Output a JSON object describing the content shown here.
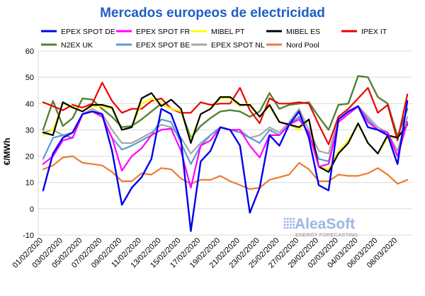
{
  "colors": {
    "title": "#1f5fc4",
    "grid": "#d9d9d9",
    "brand": "#1f5fc4",
    "brand_sub": "#7f7f7f"
  },
  "brand": {
    "logo_icon": "dotted-square-logo-icon",
    "name": "AleaSoft",
    "tagline": "ENERGY FORECASTING"
  },
  "chart_data": {
    "type": "line",
    "title": "Mercados europeos de electricidad",
    "ylabel": "€/MWh",
    "xlabel": "",
    "ylim": [
      -10,
      60
    ],
    "yticks": [
      -10,
      0,
      10,
      20,
      30,
      40,
      50,
      60
    ],
    "grid": true,
    "legend_position": "top",
    "x": [
      "01/02/2020",
      "02/02/2020",
      "03/02/2020",
      "04/02/2020",
      "05/02/2020",
      "06/02/2020",
      "07/02/2020",
      "08/02/2020",
      "09/02/2020",
      "10/02/2020",
      "11/02/2020",
      "12/02/2020",
      "13/02/2020",
      "14/02/2020",
      "15/02/2020",
      "16/02/2020",
      "17/02/2020",
      "18/02/2020",
      "19/02/2020",
      "20/02/2020",
      "21/02/2020",
      "22/02/2020",
      "23/02/2020",
      "24/02/2020",
      "25/02/2020",
      "26/02/2020",
      "27/02/2020",
      "28/02/2020",
      "29/02/2020",
      "01/03/2020",
      "02/03/2020",
      "03/03/2020",
      "04/03/2020",
      "05/03/2020",
      "06/03/2020",
      "07/03/2020",
      "08/03/2020",
      "09/03/2020"
    ],
    "x_tick_labels": [
      "01/02/2020",
      "03/02/2020",
      "05/02/2020",
      "07/02/2020",
      "09/02/2020",
      "11/02/2020",
      "13/02/2020",
      "15/02/2020",
      "17/02/2020",
      "19/02/2020",
      "21/02/2020",
      "23/02/2020",
      "25/02/2020",
      "27/02/2020",
      "29/02/2020",
      "02/03/2020",
      "04/03/2020",
      "06/03/2020",
      "08/03/2020"
    ],
    "series": [
      {
        "name": "EPEX SPOT DE",
        "color": "#0000ee",
        "width": 2.4,
        "values": [
          7,
          21,
          27,
          29,
          36,
          37,
          36,
          22,
          1.5,
          8,
          12,
          19,
          38,
          36,
          26,
          -8.5,
          18,
          22,
          31,
          30,
          24,
          -1.5,
          8,
          28,
          24,
          32,
          37,
          27,
          9,
          7,
          34,
          37,
          39,
          31,
          30,
          28,
          17,
          41
        ]
      },
      {
        "name": "EPEX SPOT FR",
        "color": "#ff00ff",
        "width": 2.2,
        "values": [
          17,
          20,
          26,
          27,
          36,
          37,
          35,
          27,
          14.5,
          20,
          23,
          28,
          30,
          30.5,
          22,
          8,
          24,
          26,
          31,
          30,
          30,
          24,
          19.5,
          28,
          28,
          32,
          34,
          29,
          16,
          17,
          33,
          36,
          39,
          33,
          30,
          29,
          20,
          33
        ]
      },
      {
        "name": "MIBEL PT",
        "color": "#ffff00",
        "width": 2.2,
        "values": [
          28,
          30,
          40,
          39,
          37,
          39,
          39,
          38,
          30,
          31,
          40,
          42,
          40,
          38,
          37,
          26,
          36,
          38,
          42,
          42,
          39,
          40,
          35,
          39,
          33,
          32,
          30,
          34,
          16,
          15,
          22,
          26,
          32,
          25,
          21,
          27,
          27,
          32
        ]
      },
      {
        "name": "MIBEL ES",
        "color": "#000000",
        "width": 2.2,
        "values": [
          29,
          28,
          40.5,
          38.5,
          37,
          39.5,
          39.5,
          38.5,
          30,
          31,
          42,
          44,
          39,
          41.5,
          38,
          25,
          36,
          38,
          42.5,
          42.5,
          39.5,
          39.5,
          35,
          39.5,
          33,
          32,
          31,
          34,
          16,
          14,
          21,
          25,
          32.5,
          25,
          21,
          28,
          27,
          32
        ]
      },
      {
        "name": "IPEX IT",
        "color": "#ee0000",
        "width": 2.2,
        "values": [
          40.5,
          39,
          37.5,
          39.5,
          38.5,
          40,
          48,
          41,
          36.5,
          38,
          38,
          41,
          42,
          38,
          36.5,
          36.5,
          40.5,
          39.5,
          40,
          40,
          46,
          37.5,
          32.5,
          42,
          40,
          40,
          40.5,
          40,
          32,
          24.5,
          35,
          38,
          42,
          46,
          36.5,
          39.5,
          26,
          43.5
        ]
      },
      {
        "name": "N2EX UK",
        "color": "#548235",
        "width": 2.4,
        "values": [
          30,
          41,
          31.5,
          34.5,
          42,
          41.5,
          38,
          35,
          31,
          31.5,
          34,
          37,
          40,
          38,
          37,
          27,
          31.5,
          34.5,
          37,
          37.5,
          37,
          35,
          37,
          44,
          38,
          39.5,
          40,
          40.5,
          35,
          30,
          39.5,
          40,
          50.5,
          50,
          42.5,
          40,
          27.5,
          38
        ]
      },
      {
        "name": "EPEX SPOT BE",
        "color": "#5b9bd5",
        "width": 2.2,
        "values": [
          19,
          27,
          28,
          27,
          36,
          37,
          35,
          27,
          22.5,
          24,
          26,
          28,
          34,
          33,
          25,
          17,
          24,
          28,
          31,
          30,
          29,
          27,
          25,
          30,
          28,
          32,
          35,
          28,
          19,
          18,
          33,
          36,
          39,
          34,
          30,
          29,
          20,
          33
        ]
      },
      {
        "name": "EPEX SPOT NL",
        "color": "#a6a6a6",
        "width": 2.2,
        "values": [
          29,
          30,
          28,
          29,
          36,
          38,
          36,
          30,
          25,
          25,
          27,
          29,
          32,
          31,
          27,
          21,
          25,
          28,
          31,
          30,
          30,
          27,
          28,
          31,
          29,
          33,
          38,
          30,
          22,
          21,
          34,
          37,
          39,
          35,
          31,
          29,
          22,
          35
        ]
      },
      {
        "name": "Nord Pool",
        "color": "#ed7d31",
        "width": 2.2,
        "values": [
          15,
          16.5,
          19.5,
          20,
          17.5,
          17,
          16.5,
          14,
          10.5,
          10.5,
          13.5,
          13,
          15.5,
          15,
          11.5,
          9.5,
          11,
          11,
          12.5,
          10.5,
          9,
          7.5,
          8,
          11,
          12,
          13,
          17.5,
          15,
          10.5,
          10.5,
          13,
          12.5,
          12.5,
          13.5,
          15.5,
          13,
          9.5,
          11
        ]
      }
    ]
  }
}
